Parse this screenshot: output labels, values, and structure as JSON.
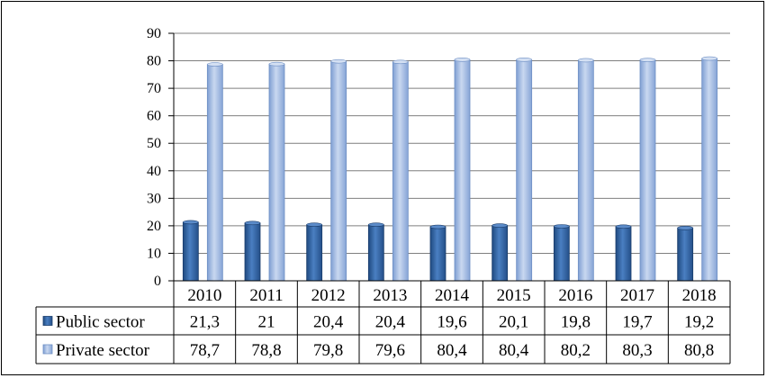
{
  "chart_data": {
    "type": "bar",
    "categories": [
      "2010",
      "2011",
      "2012",
      "2013",
      "2014",
      "2015",
      "2016",
      "2017",
      "2018"
    ],
    "series": [
      {
        "name": "Public sector",
        "values": [
          21.3,
          21,
          20.4,
          20.4,
          19.6,
          20.1,
          19.8,
          19.7,
          19.2
        ],
        "labels": [
          "21,3",
          "21",
          "20,4",
          "20,4",
          "19,6",
          "20,1",
          "19,8",
          "19,7",
          "19,2"
        ],
        "color": "#2e5d99"
      },
      {
        "name": "Private sector",
        "values": [
          78.7,
          78.8,
          79.8,
          79.6,
          80.4,
          80.4,
          80.2,
          80.3,
          80.8
        ],
        "labels": [
          "78,7",
          "78,8",
          "79,8",
          "79,6",
          "80,4",
          "80,4",
          "80,2",
          "80,3",
          "80,8"
        ],
        "color": "#9fb8e0"
      }
    ],
    "ylim": [
      0,
      90
    ],
    "yticks": [
      "0",
      "10",
      "20",
      "30",
      "40",
      "50",
      "60",
      "70",
      "80",
      "90"
    ],
    "grid": true,
    "legend": "data-table"
  }
}
